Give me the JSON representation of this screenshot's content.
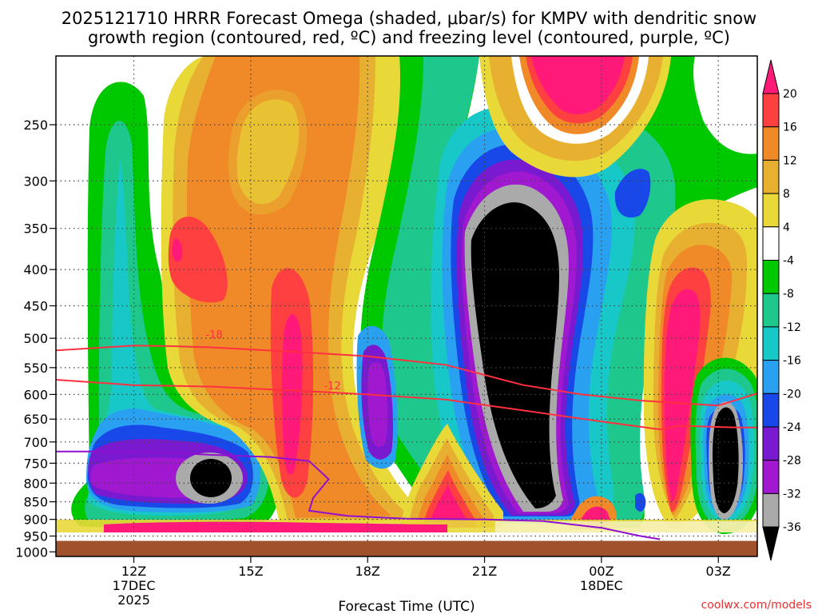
{
  "chart_data": {
    "type": "contour",
    "title_line1": "2025121710 HRRR Forecast Omega (shaded, μbar/s) for KMPV with dendritic snow",
    "title_line2": "growth region (contoured, red, ºC) and freezing level (contoured, purple, ºC)",
    "xlabel": "Forecast Time (UTC)",
    "credit": "coolwx.com/models",
    "x_ticks": [
      {
        "label": "12Z",
        "sub1": "17DEC",
        "sub2": "2025",
        "hour": 12
      },
      {
        "label": "15Z",
        "sub1": "",
        "sub2": "",
        "hour": 15
      },
      {
        "label": "18Z",
        "sub1": "",
        "sub2": "",
        "hour": 18
      },
      {
        "label": "21Z",
        "sub1": "",
        "sub2": "",
        "hour": 21
      },
      {
        "label": "00Z",
        "sub1": "18DEC",
        "sub2": "",
        "hour": 24
      },
      {
        "label": "03Z",
        "sub1": "",
        "sub2": "",
        "hour": 27
      }
    ],
    "x_range_hours": [
      10,
      28
    ],
    "y_ticks": [
      "250",
      "300",
      "350",
      "400",
      "450",
      "500",
      "550",
      "600",
      "650",
      "700",
      "750",
      "800",
      "850",
      "900",
      "950",
      "1000"
    ],
    "y_range_mb": [
      200,
      1015
    ],
    "y_scale": "log",
    "grid": true,
    "colorbar": {
      "labels": [
        "20",
        "16",
        "12",
        "8",
        "4",
        "-4",
        "-8",
        "-12",
        "-16",
        "-20",
        "-24",
        "-28",
        "-32",
        "-36"
      ],
      "colors": [
        "#ff1a7a",
        "#ff4040",
        "#f08a28",
        "#e8b030",
        "#e8d838",
        "#ffffff",
        "#00c800",
        "#1ec88c",
        "#18c8c8",
        "#2aa0f0",
        "#1848e8",
        "#7a1ad0",
        "#a018d0",
        "#aaaaaa",
        "#000000"
      ]
    },
    "contour_labels": {
      "dgz_top": "-18",
      "dgz_bottom": "-12"
    },
    "dgz_top_line": [
      [
        10,
        520
      ],
      [
        12,
        512
      ],
      [
        13,
        513
      ],
      [
        14,
        515
      ],
      [
        16,
        522
      ],
      [
        18,
        530
      ],
      [
        20,
        545
      ],
      [
        22,
        582
      ],
      [
        23.5,
        600
      ],
      [
        25,
        612
      ],
      [
        27,
        622
      ],
      [
        28,
        598
      ]
    ],
    "dgz_bottom_line": [
      [
        10,
        572
      ],
      [
        12,
        582
      ],
      [
        14,
        585
      ],
      [
        16,
        592
      ],
      [
        18,
        600
      ],
      [
        20,
        610
      ],
      [
        22,
        632
      ],
      [
        24,
        655
      ],
      [
        25.5,
        672
      ],
      [
        26,
        664
      ],
      [
        27.5,
        668
      ],
      [
        28,
        668
      ]
    ],
    "freezing_line": [
      [
        10,
        722
      ],
      [
        11,
        722
      ],
      [
        13,
        725
      ],
      [
        14,
        730
      ],
      [
        15.5,
        735
      ],
      [
        16.5,
        745
      ],
      [
        17,
        790
      ],
      [
        16.6,
        840
      ],
      [
        16.5,
        875
      ],
      [
        17.5,
        890
      ],
      [
        19,
        898
      ],
      [
        21,
        900
      ],
      [
        22.5,
        905
      ],
      [
        24,
        925
      ],
      [
        25,
        950
      ],
      [
        25.5,
        960
      ]
    ],
    "ground_mb": 965,
    "ground_color": "#a0522d"
  }
}
